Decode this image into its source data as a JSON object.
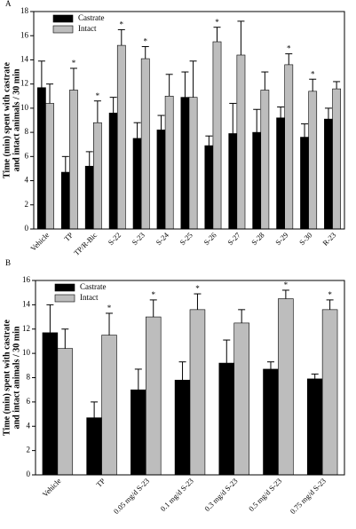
{
  "chart_data": [
    {
      "type": "bar",
      "panel_label": "A",
      "y_label": [
        "Time (min) spent with castrate",
        "and intact animals / 30 min"
      ],
      "categories": [
        "Vehicle",
        "TP",
        "TP/R-Bic",
        "S-22",
        "S-23",
        "S-24",
        "S-25",
        "S-26",
        "S-27",
        "S-28",
        "S-29",
        "S-30",
        "R-23"
      ],
      "series": [
        {
          "name": "Castrate",
          "color": "#000000",
          "values": [
            11.7,
            4.7,
            5.2,
            9.6,
            7.5,
            8.2,
            10.9,
            6.9,
            7.9,
            8.0,
            9.2,
            7.6,
            9.1
          ],
          "errors": [
            2.2,
            1.3,
            1.2,
            1.3,
            1.3,
            1.2,
            2.1,
            0.8,
            2.5,
            1.9,
            0.9,
            1.1,
            0.9
          ],
          "annotations": [
            null,
            null,
            null,
            null,
            null,
            null,
            null,
            null,
            null,
            null,
            null,
            null,
            null
          ]
        },
        {
          "name": "Intact",
          "color": "#bdbdbd",
          "values": [
            10.4,
            11.5,
            8.8,
            15.2,
            14.1,
            11.0,
            10.9,
            15.5,
            14.4,
            11.5,
            13.6,
            11.4,
            11.6
          ],
          "errors": [
            1.6,
            1.8,
            1.8,
            1.3,
            1.0,
            1.8,
            3.0,
            1.2,
            2.8,
            1.5,
            0.9,
            1.0,
            0.6
          ],
          "annotations": [
            null,
            "*",
            "*",
            "*",
            "*",
            null,
            null,
            "*",
            null,
            null,
            "*",
            "*",
            null
          ]
        }
      ],
      "ylim": [
        0,
        18
      ],
      "yticks": [
        0,
        2,
        4,
        6,
        8,
        10,
        12,
        14,
        16,
        18
      ],
      "legend": "upper left"
    },
    {
      "type": "bar",
      "panel_label": "B",
      "y_label": [
        "Time (min) spent with castrate",
        "and intact animals / 30 min"
      ],
      "categories": [
        "Vehicle",
        "TP",
        "0.05 mg/d S-23",
        "0.1 mg/d S-23",
        "0.3 mg/d S-23",
        "0.5 mg/d S-23",
        "0.75 mg/d S-23"
      ],
      "series": [
        {
          "name": "Castrate",
          "color": "#000000",
          "values": [
            11.7,
            4.7,
            7.0,
            7.8,
            9.2,
            8.7,
            7.9
          ],
          "errors": [
            2.3,
            1.3,
            1.7,
            1.5,
            1.9,
            0.6,
            0.4
          ],
          "annotations": [
            null,
            null,
            null,
            null,
            null,
            null,
            null
          ]
        },
        {
          "name": "Intact",
          "color": "#bdbdbd",
          "values": [
            10.4,
            11.5,
            13.0,
            13.6,
            12.5,
            14.5,
            13.6
          ],
          "errors": [
            1.6,
            1.8,
            1.4,
            1.3,
            1.1,
            0.7,
            0.8
          ],
          "annotations": [
            null,
            "*",
            "*",
            "*",
            null,
            "*",
            "*"
          ]
        }
      ],
      "ylim": [
        0,
        16
      ],
      "yticks": [
        0,
        2,
        4,
        6,
        8,
        10,
        12,
        14,
        16
      ],
      "legend": "upper left"
    }
  ]
}
